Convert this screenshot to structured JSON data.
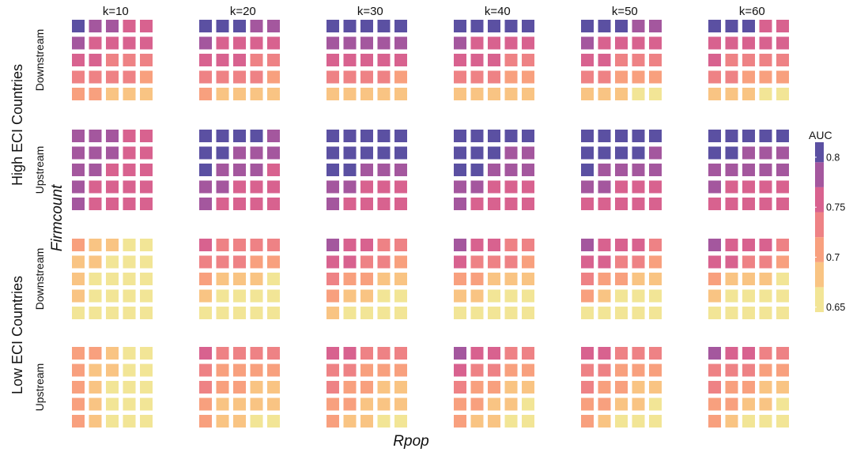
{
  "chart_data": {
    "type": "heatmap",
    "x_title": "Rpop",
    "y_title": "Firmcount",
    "columns": [
      "k=10",
      "k=20",
      "k=30",
      "k=40",
      "k=50",
      "k=60"
    ],
    "groups": [
      {
        "label": "High ECI Countries",
        "rows": [
          "Downstream",
          "Upstream"
        ]
      },
      {
        "label": "Low ECI Countries",
        "rows": [
          "Downstream",
          "Upstream"
        ]
      }
    ],
    "legend": {
      "title": "AUC",
      "ticks": [
        "0.8",
        "0.75",
        "0.7",
        "0.65"
      ],
      "tick_values": [
        0.8,
        0.75,
        0.7,
        0.65
      ],
      "range": [
        0.645,
        0.815
      ],
      "bins": [
        {
          "from": 0.645,
          "to": 0.67,
          "color": "#f2e596"
        },
        {
          "from": 0.67,
          "to": 0.695,
          "color": "#f9c483"
        },
        {
          "from": 0.695,
          "to": 0.72,
          "color": "#f8a07e"
        },
        {
          "from": 0.72,
          "to": 0.745,
          "color": "#ee8285"
        },
        {
          "from": 0.745,
          "to": 0.77,
          "color": "#d8628f"
        },
        {
          "from": 0.77,
          "to": 0.795,
          "color": "#a4579e"
        },
        {
          "from": 0.795,
          "to": 0.815,
          "color": "#5b50a2"
        }
      ]
    },
    "cells_note_levels": "each cell value is an AUC in data units",
    "panels": {
      "high_downstream": [
        [
          [
            0.8,
            0.78,
            0.78,
            0.76,
            0.76
          ],
          [
            0.78,
            0.76,
            0.76,
            0.76,
            0.76
          ],
          [
            0.76,
            0.76,
            0.74,
            0.74,
            0.74
          ],
          [
            0.74,
            0.74,
            0.74,
            0.74,
            0.71
          ],
          [
            0.71,
            0.71,
            0.69,
            0.69,
            0.69
          ]
        ],
        [
          [
            0.8,
            0.8,
            0.8,
            0.78,
            0.78
          ],
          [
            0.78,
            0.76,
            0.76,
            0.76,
            0.76
          ],
          [
            0.76,
            0.76,
            0.76,
            0.74,
            0.74
          ],
          [
            0.74,
            0.74,
            0.74,
            0.74,
            0.71
          ],
          [
            0.71,
            0.69,
            0.69,
            0.69,
            0.69
          ]
        ],
        [
          [
            0.8,
            0.8,
            0.8,
            0.8,
            0.8
          ],
          [
            0.78,
            0.78,
            0.78,
            0.78,
            0.78
          ],
          [
            0.76,
            0.76,
            0.76,
            0.76,
            0.76
          ],
          [
            0.74,
            0.74,
            0.74,
            0.74,
            0.71
          ],
          [
            0.69,
            0.69,
            0.69,
            0.69,
            0.69
          ]
        ],
        [
          [
            0.8,
            0.8,
            0.8,
            0.8,
            0.8
          ],
          [
            0.78,
            0.76,
            0.76,
            0.76,
            0.76
          ],
          [
            0.76,
            0.76,
            0.76,
            0.74,
            0.74
          ],
          [
            0.74,
            0.74,
            0.74,
            0.71,
            0.71
          ],
          [
            0.69,
            0.69,
            0.69,
            0.69,
            0.69
          ]
        ],
        [
          [
            0.8,
            0.8,
            0.8,
            0.78,
            0.78
          ],
          [
            0.78,
            0.76,
            0.76,
            0.76,
            0.76
          ],
          [
            0.76,
            0.76,
            0.74,
            0.74,
            0.74
          ],
          [
            0.74,
            0.74,
            0.71,
            0.71,
            0.71
          ],
          [
            0.69,
            0.69,
            0.69,
            0.66,
            0.66
          ]
        ],
        [
          [
            0.8,
            0.8,
            0.8,
            0.76,
            0.76
          ],
          [
            0.76,
            0.76,
            0.76,
            0.76,
            0.76
          ],
          [
            0.76,
            0.74,
            0.74,
            0.74,
            0.74
          ],
          [
            0.74,
            0.74,
            0.71,
            0.71,
            0.71
          ],
          [
            0.69,
            0.69,
            0.69,
            0.66,
            0.66
          ]
        ]
      ],
      "high_upstream": [
        [
          [
            0.78,
            0.78,
            0.78,
            0.76,
            0.76
          ],
          [
            0.78,
            0.78,
            0.78,
            0.76,
            0.76
          ],
          [
            0.78,
            0.78,
            0.76,
            0.76,
            0.76
          ],
          [
            0.78,
            0.76,
            0.76,
            0.76,
            0.76
          ],
          [
            0.78,
            0.76,
            0.76,
            0.76,
            0.76
          ]
        ],
        [
          [
            0.8,
            0.8,
            0.8,
            0.8,
            0.78
          ],
          [
            0.8,
            0.8,
            0.78,
            0.78,
            0.78
          ],
          [
            0.8,
            0.78,
            0.78,
            0.78,
            0.76
          ],
          [
            0.78,
            0.78,
            0.76,
            0.76,
            0.76
          ],
          [
            0.78,
            0.76,
            0.76,
            0.76,
            0.76
          ]
        ],
        [
          [
            0.8,
            0.8,
            0.8,
            0.8,
            0.8
          ],
          [
            0.8,
            0.8,
            0.8,
            0.8,
            0.8
          ],
          [
            0.8,
            0.8,
            0.78,
            0.78,
            0.78
          ],
          [
            0.78,
            0.78,
            0.76,
            0.76,
            0.76
          ],
          [
            0.78,
            0.76,
            0.76,
            0.76,
            0.76
          ]
        ],
        [
          [
            0.8,
            0.8,
            0.8,
            0.8,
            0.8
          ],
          [
            0.8,
            0.8,
            0.8,
            0.78,
            0.78
          ],
          [
            0.8,
            0.8,
            0.78,
            0.78,
            0.78
          ],
          [
            0.78,
            0.78,
            0.76,
            0.76,
            0.76
          ],
          [
            0.78,
            0.76,
            0.76,
            0.76,
            0.76
          ]
        ],
        [
          [
            0.8,
            0.8,
            0.8,
            0.8,
            0.8
          ],
          [
            0.8,
            0.8,
            0.8,
            0.8,
            0.78
          ],
          [
            0.8,
            0.78,
            0.78,
            0.78,
            0.78
          ],
          [
            0.78,
            0.78,
            0.76,
            0.76,
            0.76
          ],
          [
            0.76,
            0.76,
            0.76,
            0.76,
            0.76
          ]
        ],
        [
          [
            0.8,
            0.8,
            0.8,
            0.8,
            0.8
          ],
          [
            0.8,
            0.8,
            0.78,
            0.78,
            0.78
          ],
          [
            0.78,
            0.78,
            0.78,
            0.78,
            0.78
          ],
          [
            0.78,
            0.76,
            0.76,
            0.76,
            0.76
          ],
          [
            0.76,
            0.76,
            0.76,
            0.76,
            0.76
          ]
        ]
      ],
      "low_downstream": [
        [
          [
            0.71,
            0.69,
            0.69,
            0.66,
            0.66
          ],
          [
            0.69,
            0.69,
            0.66,
            0.66,
            0.66
          ],
          [
            0.69,
            0.66,
            0.66,
            0.66,
            0.66
          ],
          [
            0.69,
            0.66,
            0.66,
            0.66,
            0.66
          ],
          [
            0.66,
            0.66,
            0.66,
            0.66,
            0.66
          ]
        ],
        [
          [
            0.76,
            0.74,
            0.74,
            0.74,
            0.74
          ],
          [
            0.74,
            0.74,
            0.74,
            0.71,
            0.71
          ],
          [
            0.71,
            0.69,
            0.69,
            0.69,
            0.66
          ],
          [
            0.69,
            0.66,
            0.66,
            0.66,
            0.66
          ],
          [
            0.66,
            0.66,
            0.66,
            0.66,
            0.66
          ]
        ],
        [
          [
            0.78,
            0.76,
            0.76,
            0.74,
            0.74
          ],
          [
            0.76,
            0.76,
            0.74,
            0.74,
            0.71
          ],
          [
            0.74,
            0.71,
            0.71,
            0.69,
            0.69
          ],
          [
            0.71,
            0.69,
            0.69,
            0.66,
            0.66
          ],
          [
            0.69,
            0.66,
            0.66,
            0.66,
            0.66
          ]
        ],
        [
          [
            0.78,
            0.76,
            0.76,
            0.74,
            0.74
          ],
          [
            0.76,
            0.74,
            0.74,
            0.74,
            0.71
          ],
          [
            0.71,
            0.71,
            0.69,
            0.69,
            0.69
          ],
          [
            0.69,
            0.69,
            0.66,
            0.66,
            0.66
          ],
          [
            0.66,
            0.66,
            0.66,
            0.66,
            0.66
          ]
        ],
        [
          [
            0.78,
            0.76,
            0.76,
            0.76,
            0.74
          ],
          [
            0.76,
            0.76,
            0.74,
            0.74,
            0.71
          ],
          [
            0.74,
            0.71,
            0.71,
            0.69,
            0.69
          ],
          [
            0.71,
            0.69,
            0.66,
            0.66,
            0.66
          ],
          [
            0.66,
            0.66,
            0.66,
            0.66,
            0.66
          ]
        ],
        [
          [
            0.78,
            0.76,
            0.76,
            0.76,
            0.74
          ],
          [
            0.76,
            0.76,
            0.74,
            0.74,
            0.71
          ],
          [
            0.71,
            0.69,
            0.69,
            0.69,
            0.66
          ],
          [
            0.69,
            0.66,
            0.66,
            0.66,
            0.66
          ],
          [
            0.66,
            0.66,
            0.66,
            0.66,
            0.66
          ]
        ]
      ],
      "low_upstream": [
        [
          [
            0.71,
            0.71,
            0.69,
            0.66,
            0.66
          ],
          [
            0.71,
            0.69,
            0.69,
            0.66,
            0.66
          ],
          [
            0.71,
            0.69,
            0.66,
            0.66,
            0.66
          ],
          [
            0.71,
            0.69,
            0.66,
            0.66,
            0.66
          ],
          [
            0.71,
            0.69,
            0.66,
            0.66,
            0.66
          ]
        ],
        [
          [
            0.76,
            0.74,
            0.74,
            0.74,
            0.74
          ],
          [
            0.74,
            0.71,
            0.71,
            0.71,
            0.71
          ],
          [
            0.74,
            0.71,
            0.71,
            0.69,
            0.69
          ],
          [
            0.71,
            0.69,
            0.69,
            0.69,
            0.69
          ],
          [
            0.71,
            0.69,
            0.69,
            0.66,
            0.66
          ]
        ],
        [
          [
            0.76,
            0.76,
            0.74,
            0.74,
            0.74
          ],
          [
            0.74,
            0.74,
            0.71,
            0.71,
            0.71
          ],
          [
            0.74,
            0.71,
            0.71,
            0.69,
            0.69
          ],
          [
            0.71,
            0.71,
            0.69,
            0.69,
            0.69
          ],
          [
            0.71,
            0.69,
            0.69,
            0.66,
            0.66
          ]
        ],
        [
          [
            0.78,
            0.76,
            0.76,
            0.74,
            0.74
          ],
          [
            0.76,
            0.74,
            0.74,
            0.71,
            0.71
          ],
          [
            0.74,
            0.71,
            0.71,
            0.69,
            0.69
          ],
          [
            0.71,
            0.71,
            0.69,
            0.69,
            0.66
          ],
          [
            0.71,
            0.69,
            0.69,
            0.66,
            0.66
          ]
        ],
        [
          [
            0.76,
            0.76,
            0.74,
            0.74,
            0.74
          ],
          [
            0.74,
            0.74,
            0.71,
            0.71,
            0.71
          ],
          [
            0.74,
            0.71,
            0.71,
            0.69,
            0.69
          ],
          [
            0.71,
            0.71,
            0.69,
            0.69,
            0.66
          ],
          [
            0.71,
            0.69,
            0.66,
            0.66,
            0.66
          ]
        ],
        [
          [
            0.78,
            0.76,
            0.76,
            0.74,
            0.74
          ],
          [
            0.74,
            0.74,
            0.74,
            0.71,
            0.71
          ],
          [
            0.74,
            0.71,
            0.71,
            0.69,
            0.69
          ],
          [
            0.71,
            0.71,
            0.69,
            0.69,
            0.66
          ],
          [
            0.71,
            0.69,
            0.66,
            0.66,
            0.66
          ]
        ]
      ]
    },
    "panel_order": [
      "high_downstream",
      "high_upstream",
      "low_downstream",
      "low_upstream"
    ]
  }
}
